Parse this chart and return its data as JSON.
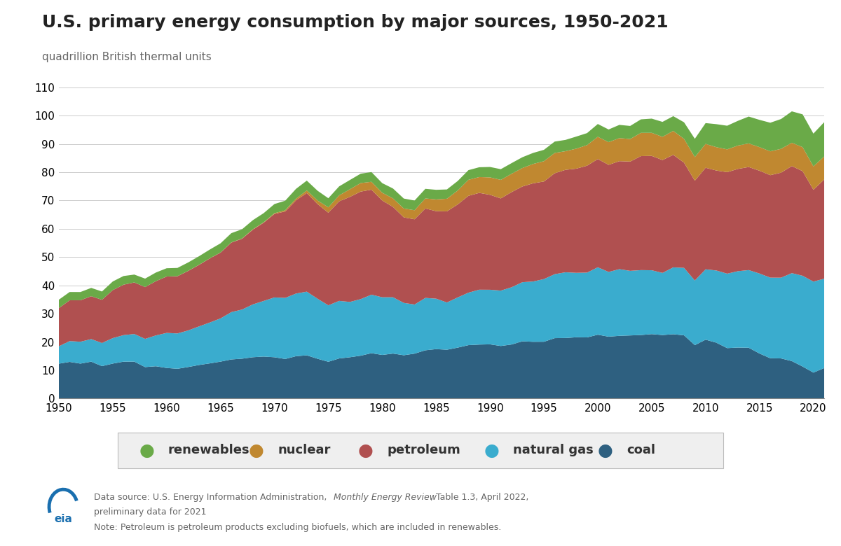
{
  "title": "U.S. primary energy consumption by major sources, 1950-2021",
  "ylabel": "quadrillion British thermal units",
  "ylim": [
    0,
    110
  ],
  "yticks": [
    0,
    10,
    20,
    30,
    40,
    50,
    60,
    70,
    80,
    90,
    100,
    110
  ],
  "xlim": [
    1950,
    2021
  ],
  "xticks": [
    1950,
    1955,
    1960,
    1965,
    1970,
    1975,
    1980,
    1985,
    1990,
    1995,
    2000,
    2005,
    2010,
    2015,
    2020
  ],
  "years": [
    1950,
    1951,
    1952,
    1953,
    1954,
    1955,
    1956,
    1957,
    1958,
    1959,
    1960,
    1961,
    1962,
    1963,
    1964,
    1965,
    1966,
    1967,
    1968,
    1969,
    1970,
    1971,
    1972,
    1973,
    1974,
    1975,
    1976,
    1977,
    1978,
    1979,
    1980,
    1981,
    1982,
    1983,
    1984,
    1985,
    1986,
    1987,
    1988,
    1989,
    1990,
    1991,
    1992,
    1993,
    1994,
    1995,
    1996,
    1997,
    1998,
    1999,
    2000,
    2001,
    2002,
    2003,
    2004,
    2005,
    2006,
    2007,
    2008,
    2009,
    2010,
    2011,
    2012,
    2013,
    2014,
    2015,
    2016,
    2017,
    2018,
    2019,
    2020,
    2021
  ],
  "coal": [
    12.34,
    12.97,
    12.36,
    13.05,
    11.47,
    12.37,
    13.05,
    13.06,
    11.13,
    11.43,
    10.82,
    10.53,
    11.16,
    11.87,
    12.44,
    13.06,
    13.83,
    14.1,
    14.62,
    14.85,
    14.61,
    13.99,
    14.98,
    15.29,
    14.07,
    13.01,
    14.18,
    14.61,
    15.16,
    16.05,
    15.42,
    15.91,
    15.32,
    15.89,
    17.07,
    17.48,
    17.26,
    18.01,
    18.89,
    19.09,
    19.17,
    18.59,
    19.12,
    20.24,
    20.07,
    20.09,
    21.36,
    21.41,
    21.67,
    21.62,
    22.58,
    21.88,
    22.18,
    22.32,
    22.46,
    22.79,
    22.46,
    22.75,
    22.36,
    18.88,
    20.82,
    19.74,
    17.84,
    18.03,
    17.97,
    15.93,
    14.26,
    14.19,
    13.25,
    11.33,
    9.18,
    10.78
  ],
  "natural_gas": [
    6.15,
    7.35,
    7.73,
    7.97,
    8.19,
    9.0,
    9.37,
    9.77,
    9.97,
    10.89,
    12.39,
    12.49,
    12.93,
    13.64,
    14.44,
    15.28,
    16.73,
    17.38,
    18.67,
    19.66,
    21.14,
    21.6,
    22.14,
    22.51,
    21.22,
    19.95,
    20.35,
    19.55,
    20.0,
    20.67,
    20.39,
    19.9,
    18.5,
    17.36,
    18.51,
    17.84,
    16.71,
    17.74,
    18.55,
    19.4,
    19.3,
    19.58,
    20.23,
    20.89,
    21.32,
    22.15,
    22.61,
    23.23,
    22.78,
    22.91,
    23.82,
    22.88,
    23.56,
    22.83,
    22.95,
    22.57,
    21.96,
    23.63,
    23.84,
    22.85,
    24.87,
    25.53,
    26.31,
    27.0,
    27.45,
    28.27,
    28.49,
    28.54,
    31.09,
    32.08,
    32.17,
    31.59
  ],
  "petroleum": [
    13.49,
    14.42,
    14.66,
    15.16,
    15.26,
    16.97,
    17.83,
    18.22,
    18.31,
    19.18,
    19.92,
    20.22,
    21.03,
    21.73,
    22.65,
    23.25,
    24.57,
    25.02,
    26.41,
    27.65,
    29.52,
    30.56,
    32.95,
    34.84,
    33.45,
    32.73,
    35.18,
    37.12,
    38.0,
    37.12,
    34.2,
    31.93,
    30.23,
    30.12,
    31.61,
    30.92,
    32.2,
    32.86,
    34.22,
    34.21,
    33.55,
    32.58,
    33.63,
    33.83,
    34.7,
    34.49,
    35.67,
    36.2,
    36.81,
    37.78,
    38.26,
    37.85,
    38.18,
    38.62,
    40.29,
    40.41,
    39.89,
    39.77,
    37.18,
    35.27,
    35.89,
    35.33,
    35.88,
    36.14,
    36.42,
    36.33,
    36.21,
    37.12,
    37.84,
    36.97,
    32.47,
    35.05
  ],
  "nuclear": [
    0.0,
    0.0,
    0.0,
    0.0,
    0.0,
    0.0,
    0.0,
    0.0,
    0.0,
    0.0,
    0.01,
    0.02,
    0.03,
    0.04,
    0.04,
    0.04,
    0.06,
    0.09,
    0.14,
    0.15,
    0.24,
    0.41,
    0.58,
    0.91,
    1.27,
    1.9,
    2.11,
    2.7,
    3.02,
    2.78,
    2.74,
    3.01,
    3.13,
    3.2,
    3.55,
    4.15,
    4.47,
    4.92,
    5.66,
    5.6,
    6.16,
    6.55,
    6.48,
    6.52,
    6.84,
    7.18,
    7.17,
    6.6,
    7.07,
    7.28,
    7.86,
    8.03,
    8.15,
    7.97,
    8.22,
    8.16,
    8.21,
    8.46,
    8.41,
    8.35,
    8.44,
    8.26,
    8.05,
    8.27,
    8.34,
    8.34,
    8.43,
    8.42,
    8.24,
    8.48,
    8.25,
    8.13
  ],
  "renewables": [
    2.97,
    2.93,
    2.91,
    2.94,
    2.93,
    3.05,
    3.07,
    2.78,
    2.99,
    3.05,
    2.93,
    2.92,
    2.97,
    3.03,
    3.1,
    3.25,
    3.28,
    3.27,
    3.23,
    3.23,
    3.25,
    3.38,
    3.48,
    3.49,
    3.45,
    3.22,
    3.18,
    3.28,
    3.31,
    3.44,
    3.4,
    3.5,
    3.52,
    3.43,
    3.4,
    3.4,
    3.28,
    3.37,
    3.42,
    3.47,
    3.68,
    3.78,
    3.76,
    3.82,
    3.9,
    4.01,
    4.03,
    3.99,
    4.28,
    4.24,
    4.53,
    4.47,
    4.67,
    4.62,
    4.77,
    5.02,
    5.28,
    5.21,
    5.86,
    6.47,
    7.35,
    8.13,
    8.36,
    8.73,
    9.5,
    9.64,
    10.11,
    10.54,
    11.1,
    11.6,
    11.59,
    12.14
  ],
  "colors": {
    "coal": "#2e6080",
    "natural_gas": "#3aacce",
    "petroleum": "#b05050",
    "nuclear": "#c08830",
    "renewables": "#6aaa48"
  },
  "legend_labels": [
    "renewables",
    "nuclear",
    "petroleum",
    "natural gas",
    "coal"
  ],
  "legend_colors": [
    "#6aaa48",
    "#c08830",
    "#b05050",
    "#3aacce",
    "#2e6080"
  ],
  "background_color": "#ffffff",
  "title_fontsize": 18,
  "ylabel_fontsize": 11,
  "tick_fontsize": 11,
  "legend_fontsize": 13
}
